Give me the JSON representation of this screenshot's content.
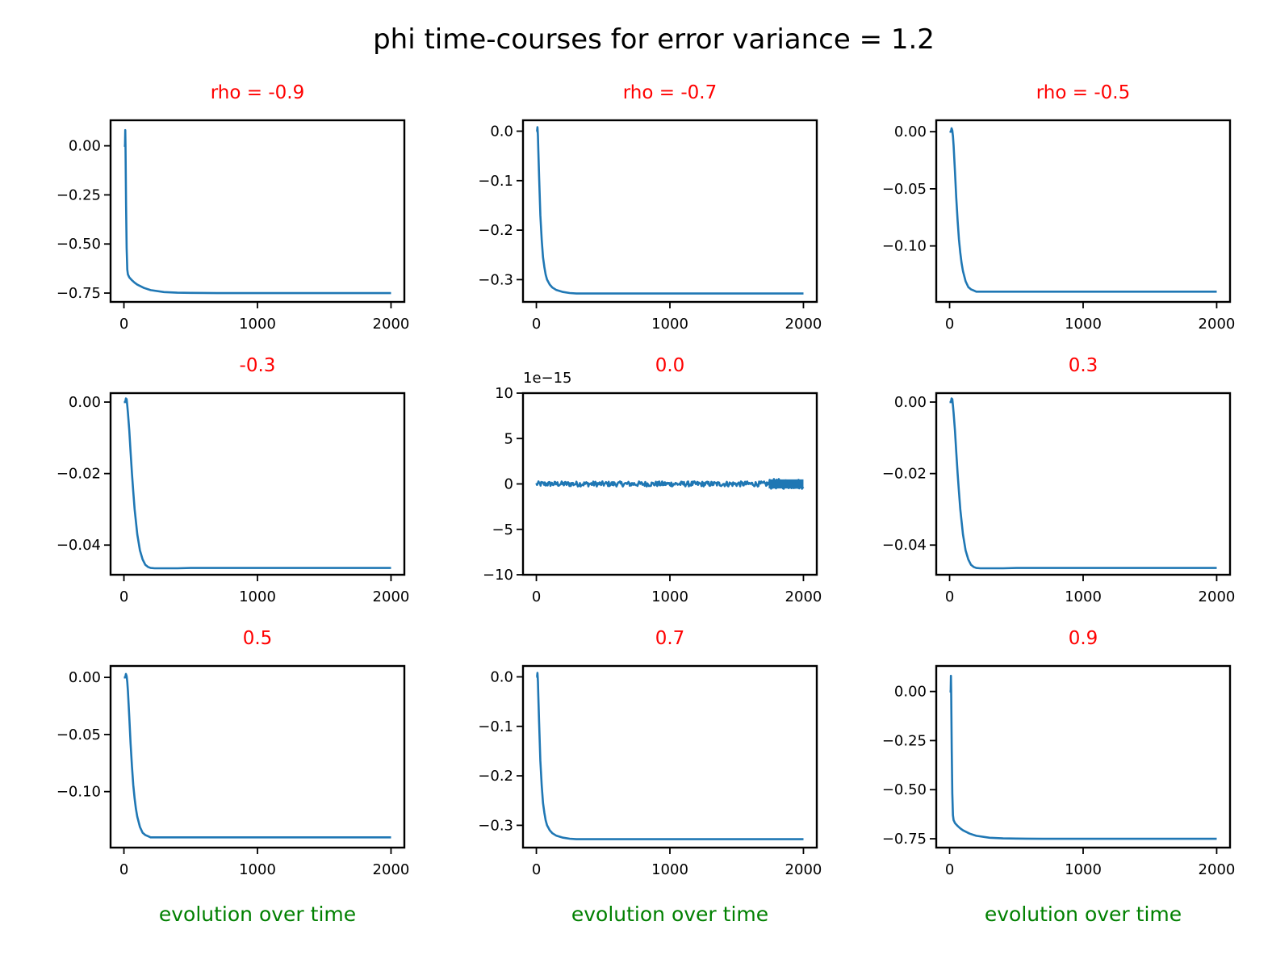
{
  "figure": {
    "title": "phi time-courses for error variance = 1.2",
    "title_color": "#000000",
    "subtitle_color": "#ff0000",
    "xlabel_color": "#008000",
    "line_color": "#1f77b4"
  },
  "chart_data": [
    {
      "type": "line",
      "title": "rho = -0.9",
      "xlabel": "",
      "xlim": [
        -100,
        2100
      ],
      "ylim": [
        -0.795,
        0.13
      ],
      "xticks": [
        0,
        1000,
        2000
      ],
      "xtick_labels": [
        "0",
        "1000",
        "2000"
      ],
      "yticks": [
        0.0,
        -0.25,
        -0.5,
        -0.75
      ],
      "ytick_labels": [
        "0.00",
        "−0.25",
        "−0.50",
        "−0.75"
      ],
      "series": [
        {
          "x": [
            0,
            8,
            10,
            12,
            16,
            20,
            25,
            30,
            40,
            60,
            80,
            100,
            150,
            200,
            300,
            400,
            500,
            700,
            1000,
            1500,
            2000
          ],
          "y": [
            0.0,
            0.0,
            0.08,
            0.0,
            -0.3,
            -0.52,
            -0.63,
            -0.655,
            -0.67,
            -0.685,
            -0.697,
            -0.707,
            -0.724,
            -0.735,
            -0.745,
            -0.748,
            -0.749,
            -0.75,
            -0.75,
            -0.75,
            -0.75
          ]
        }
      ]
    },
    {
      "type": "line",
      "title": "rho = -0.7",
      "xlabel": "",
      "xlim": [
        -100,
        2100
      ],
      "ylim": [
        -0.345,
        0.022
      ],
      "xticks": [
        0,
        1000,
        2000
      ],
      "xtick_labels": [
        "0",
        "1000",
        "2000"
      ],
      "yticks": [
        0.0,
        -0.1,
        -0.2,
        -0.3
      ],
      "ytick_labels": [
        "0.0",
        "−0.1",
        "−0.2",
        "−0.3"
      ],
      "series": [
        {
          "x": [
            0,
            5,
            8,
            10,
            12,
            15,
            20,
            30,
            40,
            50,
            60,
            70,
            80,
            100,
            120,
            150,
            200,
            250,
            300,
            400,
            500,
            700,
            1000,
            1500,
            2000
          ],
          "y": [
            0.0,
            0.0,
            0.008,
            0.0,
            -0.01,
            -0.04,
            -0.09,
            -0.17,
            -0.22,
            -0.255,
            -0.275,
            -0.29,
            -0.3,
            -0.31,
            -0.316,
            -0.321,
            -0.325,
            -0.327,
            -0.328,
            -0.328,
            -0.328,
            -0.328,
            -0.328,
            -0.328,
            -0.328
          ]
        }
      ]
    },
    {
      "type": "line",
      "title": "rho = -0.5",
      "xlabel": "",
      "xlim": [
        -100,
        2100
      ],
      "ylim": [
        -0.149,
        0.01
      ],
      "xticks": [
        0,
        1000,
        2000
      ],
      "xtick_labels": [
        "0",
        "1000",
        "2000"
      ],
      "yticks": [
        0.0,
        -0.05,
        -0.1
      ],
      "ytick_labels": [
        "0.00",
        "−0.05",
        "−0.10"
      ],
      "series": [
        {
          "x": [
            0,
            10,
            15,
            20,
            25,
            30,
            40,
            50,
            60,
            70,
            80,
            90,
            100,
            120,
            140,
            160,
            180,
            200,
            250,
            300,
            400,
            500,
            1000,
            1500,
            2000
          ],
          "y": [
            0.0,
            0.0,
            0.003,
            0.001,
            -0.004,
            -0.012,
            -0.035,
            -0.058,
            -0.078,
            -0.094,
            -0.106,
            -0.115,
            -0.122,
            -0.131,
            -0.136,
            -0.138,
            -0.139,
            -0.14,
            -0.14,
            -0.14,
            -0.14,
            -0.14,
            -0.14,
            -0.14,
            -0.14
          ]
        }
      ]
    },
    {
      "type": "line",
      "title": "-0.3",
      "xlabel": "",
      "xlim": [
        -100,
        2100
      ],
      "ylim": [
        -0.0483,
        0.0025
      ],
      "xticks": [
        0,
        1000,
        2000
      ],
      "xtick_labels": [
        "0",
        "1000",
        "2000"
      ],
      "yticks": [
        0.0,
        -0.02,
        -0.04
      ],
      "ytick_labels": [
        "0.00",
        "−0.02",
        "−0.04"
      ],
      "series": [
        {
          "x": [
            0,
            10,
            15,
            20,
            25,
            30,
            40,
            50,
            60,
            70,
            80,
            100,
            120,
            140,
            160,
            180,
            200,
            230,
            260,
            300,
            400,
            500,
            1000,
            1500,
            2000
          ],
          "y": [
            0.0,
            0.0,
            0.001,
            0.0008,
            -0.001,
            -0.003,
            -0.008,
            -0.014,
            -0.02,
            -0.025,
            -0.03,
            -0.037,
            -0.0415,
            -0.044,
            -0.0455,
            -0.0461,
            -0.0464,
            -0.0465,
            -0.0465,
            -0.0465,
            -0.0465,
            -0.0464,
            -0.0464,
            -0.0464,
            -0.0464
          ]
        }
      ]
    },
    {
      "type": "line",
      "title": "0.0",
      "xlabel": "",
      "scale_label": "1e−15",
      "xlim": [
        -100,
        2100
      ],
      "ylim": [
        -10,
        10
      ],
      "xticks": [
        0,
        1000,
        2000
      ],
      "xtick_labels": [
        "0",
        "1000",
        "2000"
      ],
      "yticks": [
        10,
        5,
        0,
        -5,
        -10
      ],
      "ytick_labels": [
        "10",
        "5",
        "0",
        "−5",
        "−10"
      ],
      "series": [
        {
          "x": [
            0,
            2000
          ],
          "y": [
            0,
            0
          ]
        }
      ]
    },
    {
      "type": "line",
      "title": "0.3",
      "xlabel": "",
      "xlim": [
        -100,
        2100
      ],
      "ylim": [
        -0.0483,
        0.0025
      ],
      "xticks": [
        0,
        1000,
        2000
      ],
      "xtick_labels": [
        "0",
        "1000",
        "2000"
      ],
      "yticks": [
        0.0,
        -0.02,
        -0.04
      ],
      "ytick_labels": [
        "0.00",
        "−0.02",
        "−0.04"
      ],
      "series": [
        {
          "x": [
            0,
            10,
            15,
            20,
            25,
            30,
            40,
            50,
            60,
            70,
            80,
            100,
            120,
            140,
            160,
            180,
            200,
            230,
            260,
            300,
            400,
            500,
            1000,
            1500,
            2000
          ],
          "y": [
            0.0,
            0.0,
            0.001,
            0.0008,
            -0.001,
            -0.003,
            -0.008,
            -0.014,
            -0.02,
            -0.025,
            -0.03,
            -0.037,
            -0.0415,
            -0.044,
            -0.0455,
            -0.0461,
            -0.0464,
            -0.0465,
            -0.0465,
            -0.0465,
            -0.0465,
            -0.0464,
            -0.0464,
            -0.0464,
            -0.0464
          ]
        }
      ]
    },
    {
      "type": "line",
      "title": "0.5",
      "xlabel": "evolution over time",
      "xlim": [
        -100,
        2100
      ],
      "ylim": [
        -0.149,
        0.01
      ],
      "xticks": [
        0,
        1000,
        2000
      ],
      "xtick_labels": [
        "0",
        "1000",
        "2000"
      ],
      "yticks": [
        0.0,
        -0.05,
        -0.1
      ],
      "ytick_labels": [
        "0.00",
        "−0.05",
        "−0.10"
      ],
      "series": [
        {
          "x": [
            0,
            10,
            15,
            20,
            25,
            30,
            40,
            50,
            60,
            70,
            80,
            90,
            100,
            120,
            140,
            160,
            180,
            200,
            250,
            300,
            400,
            500,
            1000,
            1500,
            2000
          ],
          "y": [
            0.0,
            0.0,
            0.003,
            0.001,
            -0.004,
            -0.012,
            -0.035,
            -0.058,
            -0.078,
            -0.094,
            -0.106,
            -0.115,
            -0.122,
            -0.131,
            -0.136,
            -0.138,
            -0.139,
            -0.14,
            -0.14,
            -0.14,
            -0.14,
            -0.14,
            -0.14,
            -0.14,
            -0.14
          ]
        }
      ]
    },
    {
      "type": "line",
      "title": "0.7",
      "xlabel": "evolution over time",
      "xlim": [
        -100,
        2100
      ],
      "ylim": [
        -0.345,
        0.022
      ],
      "xticks": [
        0,
        1000,
        2000
      ],
      "xtick_labels": [
        "0",
        "1000",
        "2000"
      ],
      "yticks": [
        0.0,
        -0.1,
        -0.2,
        -0.3
      ],
      "ytick_labels": [
        "0.0",
        "−0.1",
        "−0.2",
        "−0.3"
      ],
      "series": [
        {
          "x": [
            0,
            5,
            8,
            10,
            12,
            15,
            20,
            30,
            40,
            50,
            60,
            70,
            80,
            100,
            120,
            150,
            200,
            250,
            300,
            400,
            500,
            700,
            1000,
            1500,
            2000
          ],
          "y": [
            0.0,
            0.0,
            0.008,
            0.0,
            -0.01,
            -0.04,
            -0.09,
            -0.17,
            -0.22,
            -0.255,
            -0.275,
            -0.29,
            -0.3,
            -0.31,
            -0.316,
            -0.321,
            -0.325,
            -0.327,
            -0.328,
            -0.328,
            -0.328,
            -0.328,
            -0.328,
            -0.328,
            -0.328
          ]
        }
      ]
    },
    {
      "type": "line",
      "title": "0.9",
      "xlabel": "evolution over time",
      "xlim": [
        -100,
        2100
      ],
      "ylim": [
        -0.795,
        0.13
      ],
      "xticks": [
        0,
        1000,
        2000
      ],
      "xtick_labels": [
        "0",
        "1000",
        "2000"
      ],
      "yticks": [
        0.0,
        -0.25,
        -0.5,
        -0.75
      ],
      "ytick_labels": [
        "0.00",
        "−0.25",
        "−0.50",
        "−0.75"
      ],
      "series": [
        {
          "x": [
            0,
            8,
            10,
            12,
            16,
            20,
            25,
            30,
            40,
            60,
            80,
            100,
            150,
            200,
            300,
            400,
            500,
            700,
            1000,
            1500,
            2000
          ],
          "y": [
            0.0,
            0.0,
            0.08,
            0.0,
            -0.3,
            -0.52,
            -0.63,
            -0.655,
            -0.67,
            -0.685,
            -0.697,
            -0.707,
            -0.724,
            -0.735,
            -0.745,
            -0.748,
            -0.749,
            -0.75,
            -0.75,
            -0.75,
            -0.75
          ]
        }
      ]
    }
  ]
}
